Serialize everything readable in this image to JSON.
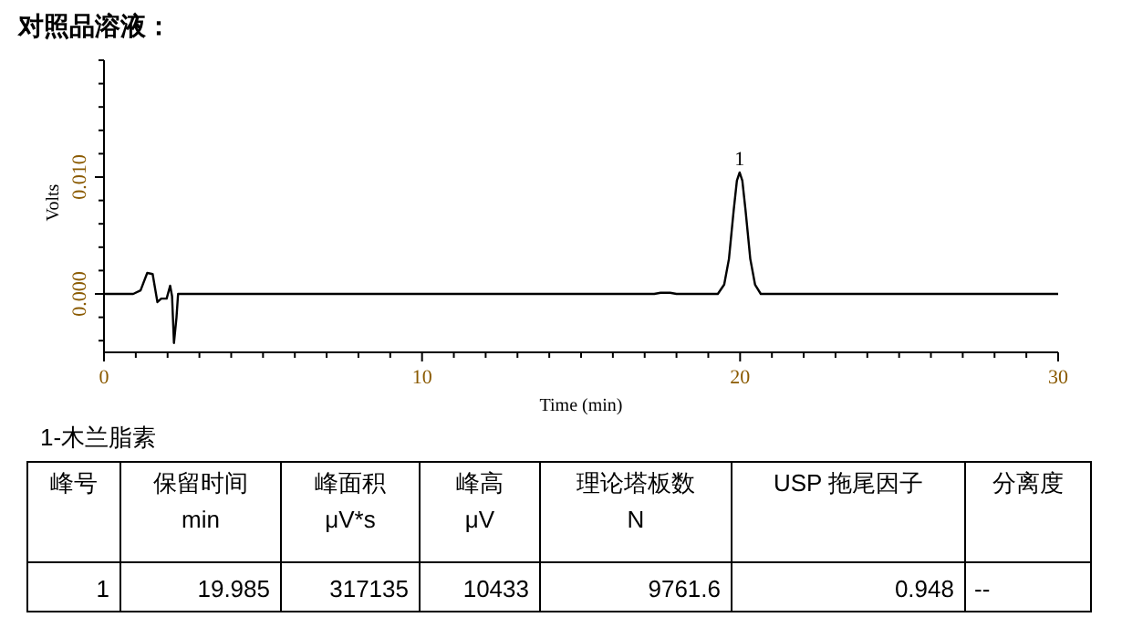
{
  "chart_data": [
    {
      "type": "line",
      "title": "对照品溶液：",
      "xlabel": "Time (min)",
      "ylabel": "Volts",
      "xlim": [
        0,
        30
      ],
      "xticks": [
        0,
        {
          "value": 1,
          "label": null
        },
        {
          "value": 2,
          "label": null
        },
        {
          "value": 3,
          "label": null
        },
        {
          "value": 4,
          "label": null
        },
        {
          "value": 5,
          "label": null
        },
        {
          "value": 6,
          "label": null
        },
        {
          "value": 7,
          "label": null
        },
        {
          "value": 8,
          "label": null
        },
        {
          "value": 9,
          "label": null
        },
        10,
        {
          "value": 11,
          "label": null
        },
        {
          "value": 12,
          "label": null
        },
        {
          "value": 13,
          "label": null
        },
        {
          "value": 14,
          "label": null
        },
        {
          "value": 15,
          "label": null
        },
        {
          "value": 16,
          "label": null
        },
        {
          "value": 17,
          "label": null
        },
        {
          "value": 18,
          "label": null
        },
        {
          "value": 19,
          "label": null
        },
        20,
        {
          "value": 21,
          "label": null
        },
        {
          "value": 22,
          "label": null
        },
        {
          "value": 23,
          "label": null
        },
        {
          "value": 24,
          "label": null
        },
        {
          "value": 25,
          "label": null
        },
        {
          "value": 26,
          "label": null
        },
        {
          "value": 27,
          "label": null
        },
        {
          "value": 28,
          "label": null
        },
        {
          "value": 29,
          "label": null
        },
        30
      ],
      "ylim": [
        -0.005,
        0.02
      ],
      "yticks": [
        {
          "value": -0.004,
          "label": null
        },
        {
          "value": -0.002,
          "label": null
        },
        {
          "value": 0,
          "label": "0.000"
        },
        {
          "value": 0.002,
          "label": null
        },
        {
          "value": 0.004,
          "label": null
        },
        {
          "value": 0.006,
          "label": null
        },
        {
          "value": 0.008,
          "label": null
        },
        {
          "value": 0.01,
          "label": "0.010"
        },
        {
          "value": 0.012,
          "label": null
        },
        {
          "value": 0.014,
          "label": null
        },
        {
          "value": 0.016,
          "label": null
        },
        {
          "value": 0.018,
          "label": null
        },
        {
          "value": 0.02,
          "label": null
        }
      ],
      "grid": false,
      "marker": "none",
      "line_style": "solid",
      "series": [
        {
          "color": "#000000",
          "x": [
            0,
            0.92,
            1.15,
            1.36,
            1.53,
            1.68,
            1.8,
            1.97,
            2.08,
            2.14,
            2.2,
            2.28,
            2.33,
            5,
            17.3,
            17.5,
            17.8,
            18,
            19.3,
            19.5,
            19.65,
            19.8,
            19.9,
            19.985,
            20.07,
            20.17,
            20.32,
            20.47,
            20.65,
            30
          ],
          "values": [
            0,
            0,
            0.0003,
            0.0018,
            0.0017,
            -0.0007,
            -0.0004,
            -0.0004,
            0.0007,
            -0.0002,
            -0.0042,
            -0.002,
            0,
            0,
            0,
            0.0001,
            0.0001,
            0,
            0,
            0.0008,
            0.003,
            0.0072,
            0.0097,
            0.0104,
            0.0097,
            0.0072,
            0.003,
            0.0008,
            0,
            0
          ]
        }
      ],
      "annotations": [
        {
          "text": "1",
          "x": 19.985,
          "y": 0.0104
        }
      ]
    },
    {
      "type": "other",
      "title": "1-木兰脂素",
      "annotations": [
        "峰号",
        "保留时间\nmin",
        "峰面积\nμV*s",
        "峰高\nμV",
        "理论塔板数\nN",
        "USP 拖尾因子",
        "分离度",
        "1",
        "19.985",
        "317135",
        "10433",
        "9761.6",
        "0.948",
        "--"
      ]
    }
  ]
}
